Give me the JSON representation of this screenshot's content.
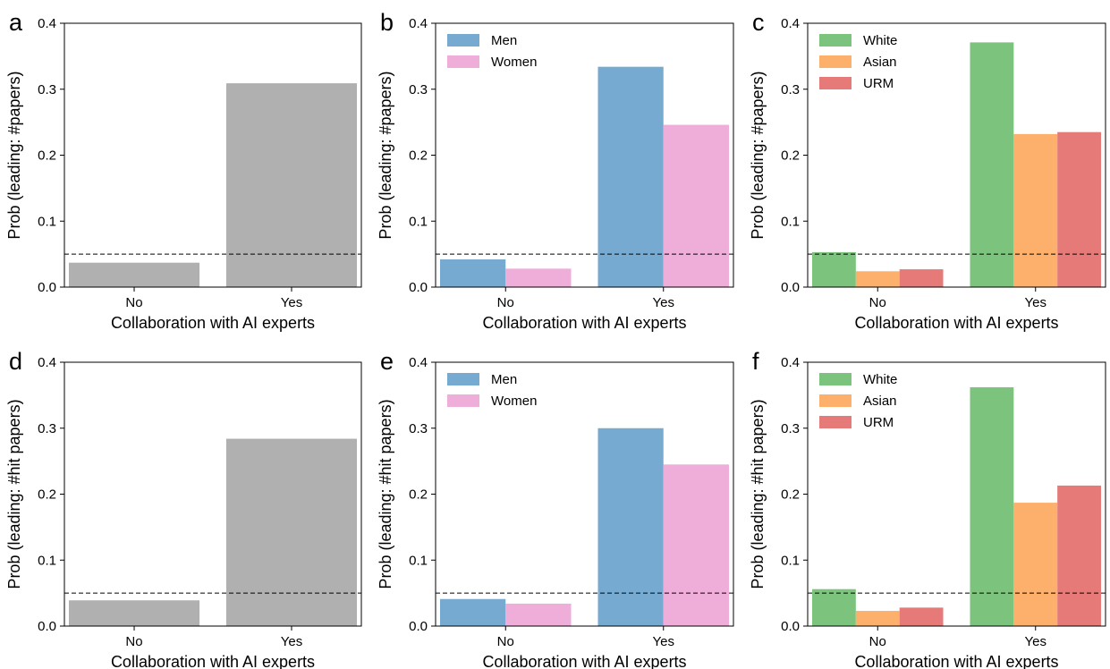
{
  "colors": {
    "gray": "#b0b0b0",
    "Men": "#76aad0",
    "Women": "#eeaed9",
    "White": "#7cc47d",
    "Asian": "#fdb06b",
    "URM": "#e57a78"
  },
  "chart_data": [
    {
      "panel": "a",
      "type": "bar",
      "categories": [
        "No",
        "Yes"
      ],
      "series": [
        {
          "values": [
            0.037,
            0.309
          ]
        }
      ],
      "xlabel": "Collaboration with AI experts",
      "ylabel": "Prob (leading: #papers)",
      "ylim": [
        0,
        0.4
      ],
      "yticks": [
        "0.0",
        "0.1",
        "0.2",
        "0.3",
        "0.4"
      ],
      "reference_line": 0.05,
      "legend": "none"
    },
    {
      "panel": "b",
      "type": "bar",
      "categories": [
        "No",
        "Yes"
      ],
      "series": [
        {
          "name": "Men",
          "values": [
            0.042,
            0.334
          ]
        },
        {
          "name": "Women",
          "values": [
            0.028,
            0.246
          ]
        }
      ],
      "xlabel": "Collaboration with AI experts",
      "ylabel": "Prob (leading: #papers)",
      "ylim": [
        0,
        0.4
      ],
      "yticks": [
        "0.0",
        "0.1",
        "0.2",
        "0.3",
        "0.4"
      ],
      "reference_line": 0.05,
      "legend": "top-left"
    },
    {
      "panel": "c",
      "type": "bar",
      "categories": [
        "No",
        "Yes"
      ],
      "series": [
        {
          "name": "White",
          "values": [
            0.053,
            0.371
          ]
        },
        {
          "name": "Asian",
          "values": [
            0.024,
            0.232
          ]
        },
        {
          "name": "URM",
          "values": [
            0.027,
            0.235
          ]
        }
      ],
      "xlabel": "Collaboration with AI experts",
      "ylabel": "Prob (leading: #papers)",
      "ylim": [
        0,
        0.4
      ],
      "yticks": [
        "0.0",
        "0.1",
        "0.2",
        "0.3",
        "0.4"
      ],
      "reference_line": 0.05,
      "legend": "top-left"
    },
    {
      "panel": "d",
      "type": "bar",
      "categories": [
        "No",
        "Yes"
      ],
      "series": [
        {
          "values": [
            0.039,
            0.284
          ]
        }
      ],
      "xlabel": "Collaboration with AI experts",
      "ylabel": "Prob (leading: #hit papers)",
      "ylim": [
        0,
        0.4
      ],
      "yticks": [
        "0.0",
        "0.1",
        "0.2",
        "0.3",
        "0.4"
      ],
      "reference_line": 0.05,
      "legend": "none"
    },
    {
      "panel": "e",
      "type": "bar",
      "categories": [
        "No",
        "Yes"
      ],
      "series": [
        {
          "name": "Men",
          "values": [
            0.041,
            0.3
          ]
        },
        {
          "name": "Women",
          "values": [
            0.034,
            0.245
          ]
        }
      ],
      "xlabel": "Collaboration with AI experts",
      "ylabel": "Prob (leading: #hit papers)",
      "ylim": [
        0,
        0.4
      ],
      "yticks": [
        "0.0",
        "0.1",
        "0.2",
        "0.3",
        "0.4"
      ],
      "reference_line": 0.05,
      "legend": "top-left"
    },
    {
      "panel": "f",
      "type": "bar",
      "categories": [
        "No",
        "Yes"
      ],
      "series": [
        {
          "name": "White",
          "values": [
            0.056,
            0.362
          ]
        },
        {
          "name": "Asian",
          "values": [
            0.023,
            0.187
          ]
        },
        {
          "name": "URM",
          "values": [
            0.028,
            0.213
          ]
        }
      ],
      "xlabel": "Collaboration with AI experts",
      "ylabel": "Prob (leading: #hit papers)",
      "ylim": [
        0,
        0.4
      ],
      "yticks": [
        "0.0",
        "0.1",
        "0.2",
        "0.3",
        "0.4"
      ],
      "reference_line": 0.05,
      "legend": "top-left"
    }
  ]
}
